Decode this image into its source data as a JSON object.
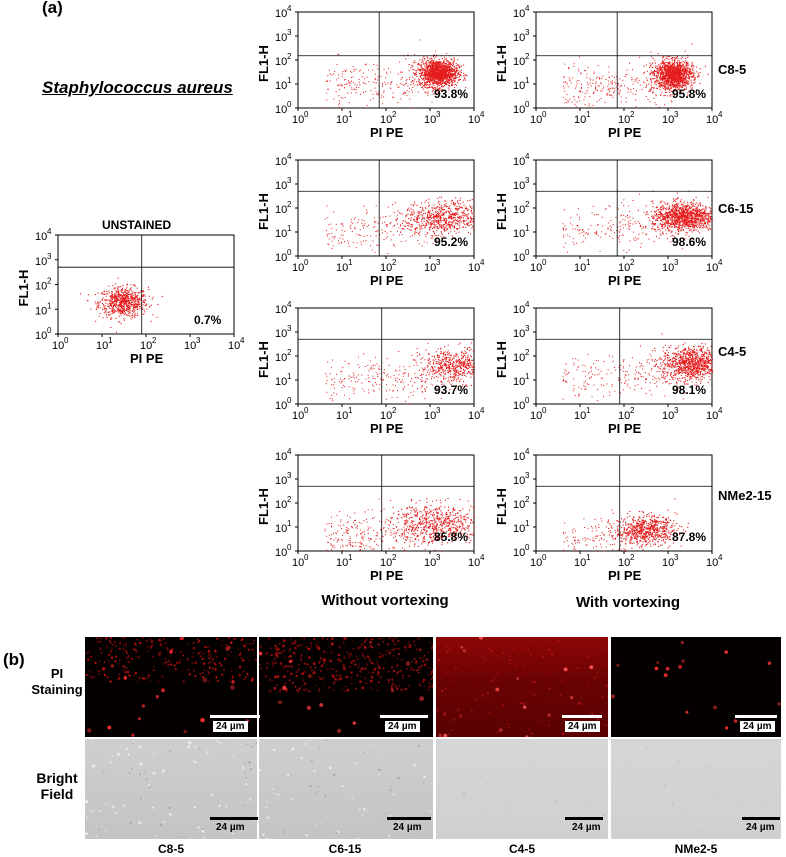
{
  "panel_a_label": "(a)",
  "panel_b_label": "(b)",
  "species": "Staphylococcus aureus",
  "captions": {
    "without": "Without vortexing",
    "with": "With vortexing"
  },
  "colors": {
    "dots": "#e51b1b",
    "axis": "#000000"
  },
  "chart_data": [
    {
      "type": "scatter",
      "id": "unstained",
      "title": "UNSTAINED",
      "xlabel": "PI PE",
      "ylabel": "FL1-H",
      "xscale": "log",
      "yscale": "log",
      "xlim": [
        1,
        10000
      ],
      "ylim": [
        1,
        10000
      ],
      "gate": {
        "x": 80,
        "y": 500
      },
      "percent": "0.7%",
      "cluster": {
        "cx": 30,
        "cy": 20,
        "sx": 0.28,
        "sy": 0.3,
        "n": 700,
        "tail": 0
      }
    },
    {
      "type": "scatter",
      "id": "c8-5-without",
      "xlabel": "PI PE",
      "ylabel": "FL1-H",
      "xscale": "log",
      "yscale": "log",
      "xlim": [
        1,
        10000
      ],
      "ylim": [
        1,
        10000
      ],
      "gate": {
        "x": 70,
        "y": 150
      },
      "percent": "93.8%",
      "cluster": {
        "cx": 1500,
        "cy": 30,
        "sx": 0.22,
        "sy": 0.28,
        "n": 1300,
        "tail": 250
      }
    },
    {
      "type": "scatter",
      "id": "c8-5-with",
      "label": "C8-5",
      "xlabel": "PI PE",
      "ylabel": "FL1-H",
      "xscale": "log",
      "yscale": "log",
      "xlim": [
        1,
        10000
      ],
      "ylim": [
        1,
        10000
      ],
      "gate": {
        "x": 70,
        "y": 150
      },
      "percent": "95.8%",
      "cluster": {
        "cx": 1300,
        "cy": 25,
        "sx": 0.22,
        "sy": 0.3,
        "n": 1300,
        "tail": 280
      }
    },
    {
      "type": "scatter",
      "id": "c6-15-without",
      "xlabel": "PI PE",
      "ylabel": "FL1-H",
      "xscale": "log",
      "yscale": "log",
      "xlim": [
        1,
        10000
      ],
      "ylim": [
        1,
        10000
      ],
      "gate": {
        "x": 70,
        "y": 500
      },
      "percent": "95.2%",
      "cluster": {
        "cx": 2000,
        "cy": 40,
        "sx": 0.45,
        "sy": 0.35,
        "n": 600,
        "tail": 220
      }
    },
    {
      "type": "scatter",
      "id": "c6-15-with",
      "label": "C6-15",
      "xlabel": "PI PE",
      "ylabel": "FL1-H",
      "xscale": "log",
      "yscale": "log",
      "xlim": [
        1,
        10000
      ],
      "ylim": [
        1,
        10000
      ],
      "gate": {
        "x": 70,
        "y": 500
      },
      "percent": "98.6%",
      "cluster": {
        "cx": 2200,
        "cy": 45,
        "sx": 0.35,
        "sy": 0.3,
        "n": 1100,
        "tail": 220
      }
    },
    {
      "type": "scatter",
      "id": "c4-5-without",
      "xlabel": "PI PE",
      "ylabel": "FL1-H",
      "xscale": "log",
      "yscale": "log",
      "xlim": [
        1,
        10000
      ],
      "ylim": [
        1,
        10000
      ],
      "gate": {
        "x": 80,
        "y": 500
      },
      "percent": "93.7%",
      "cluster": {
        "cx": 4000,
        "cy": 40,
        "sx": 0.4,
        "sy": 0.35,
        "n": 550,
        "tail": 250
      }
    },
    {
      "type": "scatter",
      "id": "c4-5-with",
      "label": "C4-5",
      "xlabel": "PI PE",
      "ylabel": "FL1-H",
      "xscale": "log",
      "yscale": "log",
      "xlim": [
        1,
        10000
      ],
      "ylim": [
        1,
        10000
      ],
      "gate": {
        "x": 80,
        "y": 500
      },
      "percent": "98.1%",
      "cluster": {
        "cx": 3500,
        "cy": 50,
        "sx": 0.35,
        "sy": 0.35,
        "n": 900,
        "tail": 250
      }
    },
    {
      "type": "scatter",
      "id": "nme2-15-without",
      "xlabel": "PI PE",
      "ylabel": "FL1-H",
      "xscale": "log",
      "yscale": "log",
      "xlim": [
        1,
        10000
      ],
      "ylim": [
        1,
        10000
      ],
      "gate": {
        "x": 80,
        "y": 500
      },
      "percent": "85.8%",
      "cluster": {
        "cx": 1500,
        "cy": 15,
        "sx": 0.55,
        "sy": 0.4,
        "n": 600,
        "tail": 300
      }
    },
    {
      "type": "scatter",
      "id": "nme2-15-with",
      "label": "NMe2-15",
      "xlabel": "PI PE",
      "ylabel": "FL1-H",
      "xscale": "log",
      "yscale": "log",
      "xlim": [
        1,
        10000
      ],
      "ylim": [
        1,
        10000
      ],
      "gate": {
        "x": 80,
        "y": 500
      },
      "percent": "87.8%",
      "cluster": {
        "cx": 300,
        "cy": 8,
        "sx": 0.35,
        "sy": 0.3,
        "n": 650,
        "tail": 150
      }
    }
  ],
  "ticks": [
    "10",
    "0",
    "10",
    "1",
    "10",
    "2",
    "10",
    "3",
    "10",
    "4"
  ],
  "tick_base": "10",
  "tick_exponents": [
    "0",
    "1",
    "2",
    "3",
    "4"
  ],
  "panel_b": {
    "row_labels": {
      "pi": [
        "PI",
        "Staining"
      ],
      "bright": [
        "Bright",
        "Field"
      ]
    },
    "columns": [
      "C8-5",
      "C6-15",
      "C4-5",
      "NMe2-5"
    ],
    "scale_label": "24 µm"
  }
}
